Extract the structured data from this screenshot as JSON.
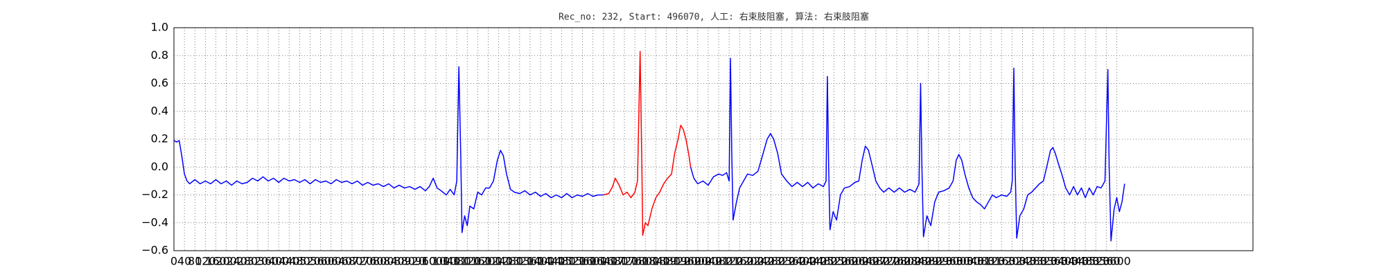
{
  "chart_data": {
    "type": "line",
    "title": "Rec_no: 232, Start: 496070, 人工: 右束肢阻塞, 算法: 右束肢阻塞",
    "xlim": [
      0,
      4120
    ],
    "ylim": [
      -0.6,
      1.0
    ],
    "grid": true,
    "xticks": [
      0,
      40,
      80,
      120,
      160,
      200,
      240,
      280,
      320,
      360,
      400,
      440,
      480,
      520,
      560,
      600,
      640,
      680,
      720,
      760,
      800,
      840,
      880,
      920,
      960,
      1000,
      1040,
      1080,
      1120,
      1160,
      1200,
      1240,
      1280,
      1320,
      1360,
      1400,
      1440,
      1480,
      1520,
      1560,
      1600,
      1640,
      1680,
      1720,
      1760,
      1800,
      1840,
      1880,
      1920,
      1960,
      2000,
      2040,
      2080,
      2120,
      2160,
      2200,
      2240,
      2280,
      2320,
      2360,
      2400,
      2440,
      2480,
      2520,
      2560,
      2600,
      2640,
      2680,
      2720,
      2760,
      2800,
      2840,
      2880,
      2920,
      2960,
      3000,
      3040,
      3080,
      3120,
      3160,
      3200,
      3240,
      3280,
      3320,
      3360,
      3400,
      3440,
      3480,
      3520,
      3560,
      3600
    ],
    "yticks": [
      {
        "value": 1.0,
        "label": "1.0"
      },
      0.8,
      0.6,
      0.4,
      0.2,
      {
        "value": 0,
        "label": "0.0"
      },
      {
        "value": -0.2,
        "label": "−0.2"
      },
      {
        "value": -0.4,
        "label": "−0.4"
      },
      {
        "value": -0.6,
        "label": "−0.6"
      }
    ],
    "series": [
      {
        "color": "#0000ff",
        "x": [
          0,
          10,
          20,
          30,
          40,
          50,
          60,
          80,
          100,
          120,
          140,
          160,
          180,
          200,
          220,
          240,
          260,
          280,
          300,
          320,
          340,
          360,
          380,
          400,
          420,
          440,
          460,
          480,
          500,
          520,
          540,
          560,
          580,
          600,
          620,
          640,
          660,
          680,
          700,
          720,
          740,
          760,
          780,
          800,
          820,
          840,
          860,
          880,
          900,
          920,
          940,
          960,
          975,
          990,
          1005,
          1020,
          1040,
          1055,
          1070,
          1080,
          1088,
          1095,
          1100,
          1110,
          1120,
          1130,
          1145,
          1160,
          1175,
          1190,
          1205,
          1220,
          1235,
          1247,
          1258,
          1270,
          1285,
          1300,
          1320,
          1340,
          1360,
          1380,
          1400,
          1420,
          1440,
          1460,
          1480,
          1500,
          1520,
          1540,
          1560,
          1580,
          1600,
          1620,
          1640,
          1800,
          1973,
          1985,
          2000,
          2020,
          2040,
          2060,
          2080,
          2095,
          2110,
          2120,
          2125,
          2130,
          2135,
          2148,
          2160,
          2175,
          2190,
          2210,
          2230,
          2250,
          2265,
          2278,
          2290,
          2305,
          2320,
          2340,
          2360,
          2380,
          2400,
          2420,
          2440,
          2460,
          2480,
          2490,
          2495,
          2500,
          2505,
          2517,
          2530,
          2545,
          2560,
          2580,
          2600,
          2615,
          2628,
          2640,
          2652,
          2665,
          2680,
          2695,
          2710,
          2730,
          2750,
          2770,
          2790,
          2810,
          2830,
          2845,
          2851,
          2856,
          2862,
          2875,
          2890,
          2905,
          2920,
          2940,
          2960,
          2975,
          2987,
          2997,
          3008,
          3020,
          3035,
          3050,
          3065,
          3080,
          3095,
          3110,
          3125,
          3140,
          3160,
          3180,
          3195,
          3201,
          3207,
          3212,
          3218,
          3230,
          3245,
          3260,
          3275,
          3290,
          3305,
          3320,
          3335,
          3347,
          3356,
          3365,
          3378,
          3390,
          3405,
          3420,
          3435,
          3450,
          3465,
          3480,
          3495,
          3510,
          3525,
          3540,
          3555,
          3566,
          3571,
          3578,
          3590,
          3600,
          3610,
          3620,
          3630
        ],
        "values": [
          0.19,
          0.18,
          0.19,
          0.08,
          -0.05,
          -0.1,
          -0.12,
          -0.09,
          -0.12,
          -0.1,
          -0.12,
          -0.09,
          -0.12,
          -0.1,
          -0.13,
          -0.1,
          -0.12,
          -0.11,
          -0.08,
          -0.1,
          -0.07,
          -0.1,
          -0.08,
          -0.11,
          -0.08,
          -0.1,
          -0.09,
          -0.11,
          -0.09,
          -0.12,
          -0.09,
          -0.11,
          -0.1,
          -0.12,
          -0.09,
          -0.11,
          -0.1,
          -0.12,
          -0.1,
          -0.13,
          -0.11,
          -0.13,
          -0.12,
          -0.14,
          -0.12,
          -0.15,
          -0.13,
          -0.15,
          -0.14,
          -0.16,
          -0.14,
          -0.17,
          -0.14,
          -0.08,
          -0.15,
          -0.17,
          -0.2,
          -0.16,
          -0.2,
          -0.1,
          0.72,
          0.1,
          -0.47,
          -0.35,
          -0.42,
          -0.28,
          -0.3,
          -0.18,
          -0.2,
          -0.15,
          -0.15,
          -0.1,
          0.05,
          0.12,
          0.08,
          -0.05,
          -0.16,
          -0.18,
          -0.19,
          -0.17,
          -0.2,
          -0.18,
          -0.21,
          -0.19,
          -0.22,
          -0.2,
          -0.22,
          -0.19,
          -0.22,
          -0.2,
          -0.21,
          -0.19,
          -0.21,
          -0.2,
          -0.2,
          null,
          0.0,
          -0.08,
          -0.12,
          -0.1,
          -0.13,
          -0.07,
          -0.05,
          -0.06,
          -0.04,
          -0.1,
          0.78,
          0.1,
          -0.38,
          -0.25,
          -0.15,
          -0.1,
          -0.05,
          -0.06,
          -0.03,
          0.1,
          0.2,
          0.24,
          0.2,
          0.1,
          -0.05,
          -0.1,
          -0.14,
          -0.11,
          -0.14,
          -0.11,
          -0.15,
          -0.12,
          -0.14,
          -0.1,
          0.65,
          0.0,
          -0.45,
          -0.32,
          -0.38,
          -0.2,
          -0.15,
          -0.14,
          -0.11,
          -0.1,
          0.05,
          0.15,
          0.12,
          0.02,
          -0.1,
          -0.15,
          -0.18,
          -0.15,
          -0.18,
          -0.15,
          -0.18,
          -0.16,
          -0.18,
          -0.12,
          0.6,
          0.0,
          -0.5,
          -0.35,
          -0.42,
          -0.25,
          -0.18,
          -0.17,
          -0.15,
          -0.1,
          0.05,
          0.09,
          0.05,
          -0.05,
          -0.15,
          -0.22,
          -0.25,
          -0.27,
          -0.3,
          -0.25,
          -0.2,
          -0.22,
          -0.2,
          -0.21,
          -0.18,
          -0.1,
          0.71,
          0.0,
          -0.51,
          -0.35,
          -0.3,
          -0.2,
          -0.18,
          -0.15,
          -0.12,
          -0.1,
          0.02,
          0.12,
          0.14,
          0.1,
          0.02,
          -0.05,
          -0.15,
          -0.2,
          -0.14,
          -0.2,
          -0.15,
          -0.22,
          -0.15,
          -0.2,
          -0.14,
          -0.15,
          -0.1,
          0.7,
          0.0,
          -0.53,
          -0.3,
          -0.22,
          -0.32,
          -0.25,
          -0.12
        ]
      },
      {
        "color": "#ff0000",
        "x": [
          1640,
          1660,
          1675,
          1685,
          1700,
          1715,
          1730,
          1745,
          1760,
          1770,
          1780,
          1786,
          1790,
          1800,
          1810,
          1825,
          1840,
          1855,
          1870,
          1885,
          1900,
          1912,
          1925,
          1935,
          1945,
          1955,
          1965,
          1973
        ],
        "values": [
          -0.2,
          -0.19,
          -0.14,
          -0.08,
          -0.13,
          -0.2,
          -0.18,
          -0.22,
          -0.18,
          -0.1,
          0.83,
          0.1,
          -0.49,
          -0.4,
          -0.42,
          -0.3,
          -0.22,
          -0.18,
          -0.12,
          -0.08,
          -0.05,
          0.1,
          0.2,
          0.3,
          0.27,
          0.2,
          0.1,
          0.0
        ]
      }
    ]
  }
}
